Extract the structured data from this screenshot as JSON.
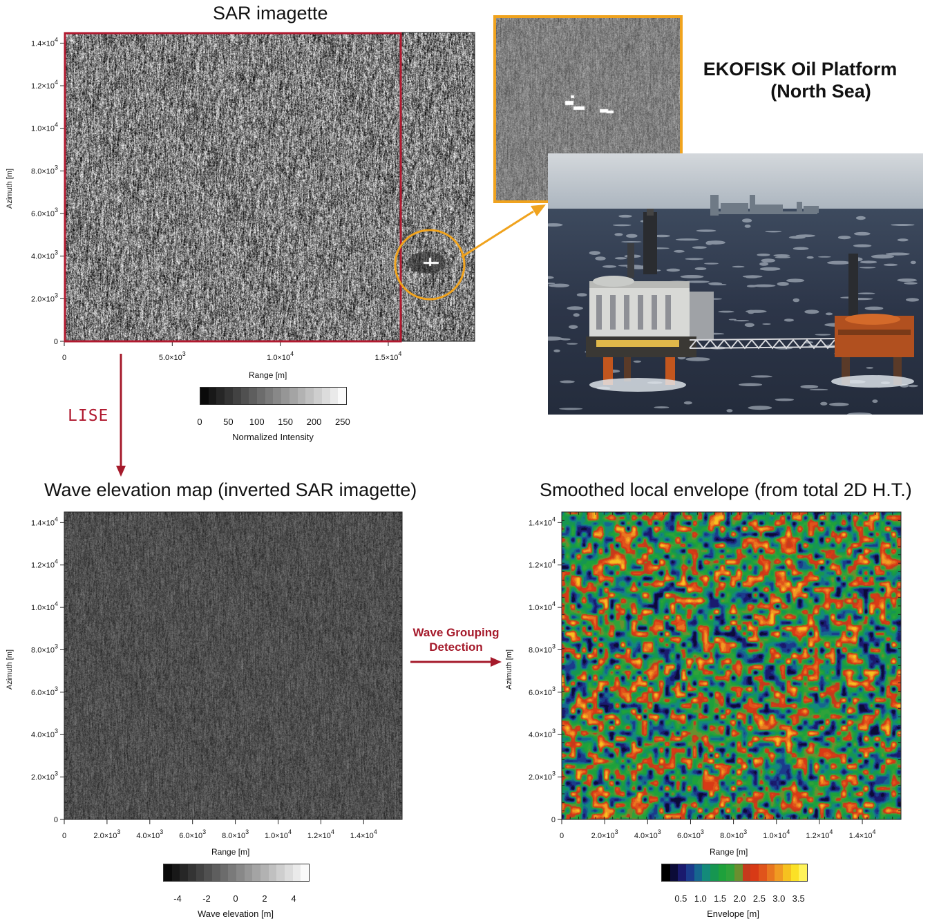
{
  "figure": {
    "sar_panel": {
      "title": "SAR imagette",
      "x_label": "Range [m]",
      "y_label": "Azimuth [m]",
      "x_ticks": [
        {
          "base": "0",
          "exp": ""
        },
        {
          "base": "5.0×10",
          "exp": "3"
        },
        {
          "base": "1.0×10",
          "exp": "4"
        },
        {
          "base": "1.5×10",
          "exp": "4"
        }
      ],
      "x_tick_values": [
        0,
        5000,
        10000,
        15000
      ],
      "x_range": [
        0,
        19000
      ],
      "y_ticks": [
        {
          "base": "0",
          "exp": ""
        },
        {
          "base": "2.0×10",
          "exp": "3"
        },
        {
          "base": "4.0×10",
          "exp": "3"
        },
        {
          "base": "6.0×10",
          "exp": "3"
        },
        {
          "base": "8.0×10",
          "exp": "3"
        },
        {
          "base": "1.0×10",
          "exp": "4"
        },
        {
          "base": "1.2×10",
          "exp": "4"
        },
        {
          "base": "1.4×10",
          "exp": "4"
        }
      ],
      "y_tick_values": [
        0,
        2000,
        4000,
        6000,
        8000,
        10000,
        12000,
        14000
      ],
      "y_range": [
        0,
        14500
      ],
      "colorbar": {
        "label": "Normalized Intensity",
        "ticks": [
          "0",
          "50",
          "100",
          "150",
          "200",
          "250"
        ],
        "tick_values": [
          0,
          50,
          100,
          150,
          200,
          250
        ],
        "range": [
          0,
          255
        ]
      },
      "highlight_color": "#b0192f",
      "zoom_color": "#f0a31e"
    },
    "platform": {
      "name_line1": "EKOFISK Oil Platform",
      "name_line2": "(North Sea)"
    },
    "arrow_labels": {
      "lise": "LISE",
      "wave_grouping_line1": "Wave Grouping",
      "wave_grouping_line2": "Detection"
    },
    "wave_panel": {
      "title": "Wave elevation map (inverted SAR imagette)",
      "x_label": "Range [m]",
      "y_label": "Azimuth [m]",
      "x_ticks": [
        {
          "base": "0",
          "exp": ""
        },
        {
          "base": "2.0×10",
          "exp": "3"
        },
        {
          "base": "4.0×10",
          "exp": "3"
        },
        {
          "base": "6.0×10",
          "exp": "3"
        },
        {
          "base": "8.0×10",
          "exp": "3"
        },
        {
          "base": "1.0×10",
          "exp": "4"
        },
        {
          "base": "1.2×10",
          "exp": "4"
        },
        {
          "base": "1.4×10",
          "exp": "4"
        }
      ],
      "x_tick_values": [
        0,
        2000,
        4000,
        6000,
        8000,
        10000,
        12000,
        14000
      ],
      "x_range": [
        0,
        15800
      ],
      "y_ticks": [
        {
          "base": "0",
          "exp": ""
        },
        {
          "base": "2.0×10",
          "exp": "3"
        },
        {
          "base": "4.0×10",
          "exp": "3"
        },
        {
          "base": "6.0×10",
          "exp": "3"
        },
        {
          "base": "8.0×10",
          "exp": "3"
        },
        {
          "base": "1.0×10",
          "exp": "4"
        },
        {
          "base": "1.2×10",
          "exp": "4"
        },
        {
          "base": "1.4×10",
          "exp": "4"
        }
      ],
      "y_tick_values": [
        0,
        2000,
        4000,
        6000,
        8000,
        10000,
        12000,
        14000
      ],
      "y_range": [
        0,
        14500
      ],
      "colorbar": {
        "label": "Wave elevation [m]",
        "ticks": [
          "-4",
          "-2",
          "0",
          "2",
          "4"
        ],
        "tick_values": [
          -4,
          -2,
          0,
          2,
          4
        ],
        "range": [
          -5,
          5
        ]
      }
    },
    "envelope_panel": {
      "title": "Smoothed local envelope (from total 2D H.T.)",
      "x_label": "Range [m]",
      "y_label": "Azimuth [m]",
      "x_ticks": [
        {
          "base": "0",
          "exp": ""
        },
        {
          "base": "2.0×10",
          "exp": "3"
        },
        {
          "base": "4.0×10",
          "exp": "3"
        },
        {
          "base": "6.0×10",
          "exp": "3"
        },
        {
          "base": "8.0×10",
          "exp": "3"
        },
        {
          "base": "1.0×10",
          "exp": "4"
        },
        {
          "base": "1.2×10",
          "exp": "4"
        },
        {
          "base": "1.4×10",
          "exp": "4"
        }
      ],
      "x_tick_values": [
        0,
        2000,
        4000,
        6000,
        8000,
        10000,
        12000,
        14000
      ],
      "x_range": [
        0,
        15800
      ],
      "y_ticks": [
        {
          "base": "0",
          "exp": ""
        },
        {
          "base": "2.0×10",
          "exp": "3"
        },
        {
          "base": "4.0×10",
          "exp": "3"
        },
        {
          "base": "6.0×10",
          "exp": "3"
        },
        {
          "base": "8.0×10",
          "exp": "3"
        },
        {
          "base": "1.0×10",
          "exp": "4"
        },
        {
          "base": "1.2×10",
          "exp": "4"
        },
        {
          "base": "1.4×10",
          "exp": "4"
        }
      ],
      "y_tick_values": [
        0,
        2000,
        4000,
        6000,
        8000,
        10000,
        12000,
        14000
      ],
      "y_range": [
        0,
        14500
      ],
      "colorbar": {
        "label": "Envelope [m]",
        "ticks": [
          "0.5",
          "1.0",
          "1.5",
          "2.0",
          "2.5",
          "3.0",
          "3.5"
        ],
        "tick_values": [
          0.5,
          1.0,
          1.5,
          2.0,
          2.5,
          3.0,
          3.5
        ],
        "range": [
          0,
          3.7
        ],
        "colors": [
          "#000000",
          "#0b0b38",
          "#1a1a6e",
          "#1b3b8c",
          "#16668f",
          "#138a7a",
          "#169651",
          "#1ea13b",
          "#2fa23a",
          "#6a8f2f",
          "#c53a1c",
          "#d83a16",
          "#e0541b",
          "#e8761f",
          "#f09a22",
          "#f6c11f",
          "#fbe126",
          "#fff35a"
        ]
      }
    }
  }
}
